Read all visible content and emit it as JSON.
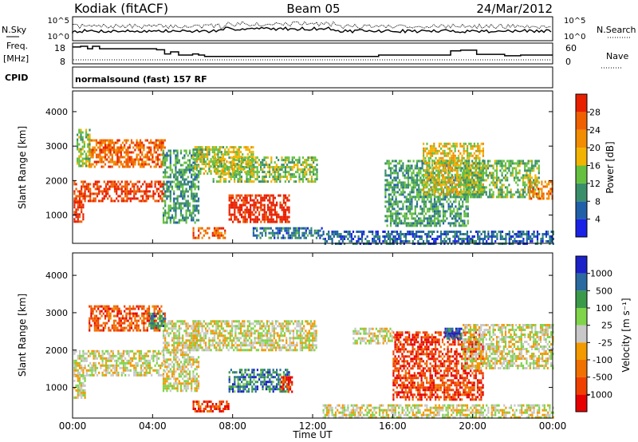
{
  "header": {
    "station": "Kodiak (fitACF)",
    "beam": "Beam 05",
    "date": "24/Mar/2012"
  },
  "noise_panel": {
    "left_label": "N.Sky",
    "right_label": "N.Search",
    "left_ticks": [
      "10^5",
      "10^0"
    ],
    "right_ticks": [
      "10^5",
      "10^0"
    ]
  },
  "freq_panel": {
    "left_label_line1": "Freq.",
    "left_label_line2": "[MHz]",
    "right_label": "Nave",
    "left_ticks": [
      "18",
      "8"
    ],
    "right_ticks": [
      "60",
      "0"
    ],
    "freq_steps": [
      {
        "t": 0.0,
        "f": 17.6
      },
      {
        "t": 0.4,
        "f": 18.0
      },
      {
        "t": 0.75,
        "f": 16.6
      },
      {
        "t": 1.0,
        "f": 18.0
      },
      {
        "t": 1.35,
        "f": 16.6
      },
      {
        "t": 2.5,
        "f": 16.6
      },
      {
        "t": 4.2,
        "f": 16.0
      },
      {
        "t": 4.6,
        "f": 13.6
      },
      {
        "t": 4.9,
        "f": 14.8
      },
      {
        "t": 5.3,
        "f": 13.0
      },
      {
        "t": 6.0,
        "f": 13.6
      },
      {
        "t": 6.3,
        "f": 13.0
      },
      {
        "t": 6.6,
        "f": 12.2
      },
      {
        "t": 14.5,
        "f": 12.2
      },
      {
        "t": 15.3,
        "f": 13.0
      },
      {
        "t": 18.5,
        "f": 13.0
      },
      {
        "t": 18.9,
        "f": 15.4
      },
      {
        "t": 19.4,
        "f": 15.8
      },
      {
        "t": 20.2,
        "f": 13.4
      },
      {
        "t": 21.2,
        "f": 13.4
      },
      {
        "t": 21.6,
        "f": 12.6
      },
      {
        "t": 22.4,
        "f": 13.0
      },
      {
        "t": 24.0,
        "f": 13.0
      }
    ]
  },
  "cpid": {
    "label": "CPID",
    "value": "normalsound (fast) 157 RF"
  },
  "xaxis": {
    "title": "Time UT",
    "ticks": [
      "00:00",
      "04:00",
      "08:00",
      "12:00",
      "16:00",
      "20:00",
      "00:00"
    ]
  },
  "chart_data": [
    {
      "type": "heatmap",
      "title": "",
      "xlabel": "",
      "ylabel": "Slant Range [km]",
      "xlim": [
        0,
        24
      ],
      "ylim": [
        180,
        4600
      ],
      "yticks": [
        1000,
        2000,
        3000,
        4000
      ],
      "ytick_labels": [
        "1000",
        "2000",
        "3000",
        "4000"
      ],
      "colorbar_label": "Power [dB]",
      "colorbar_ticks": [
        "28",
        "24",
        "20",
        "16",
        "12",
        "8",
        "4"
      ],
      "colorbar_values": [
        28,
        24,
        20,
        16,
        12,
        8,
        4
      ],
      "colorbar_range": [
        0,
        32
      ],
      "colorbar_colors": [
        "#1a22e6",
        "#2060a8",
        "#3a8f6a",
        "#66c040",
        "#f2b400",
        "#f28c00",
        "#f06000",
        "#e82000"
      ],
      "patches": [
        {
          "t0": 0.05,
          "t1": 4.6,
          "r0": 1400,
          "r1": 2000,
          "level": 0.9
        },
        {
          "t0": 0.05,
          "t1": 0.5,
          "r0": 800,
          "r1": 1400,
          "level": 0.95
        },
        {
          "t0": 0.8,
          "t1": 4.6,
          "r0": 2400,
          "r1": 3200,
          "level": 0.8
        },
        {
          "t0": 0.2,
          "t1": 0.9,
          "r0": 2400,
          "r1": 3500,
          "level": 0.45
        },
        {
          "t0": 4.5,
          "t1": 6.3,
          "r0": 800,
          "r1": 2900,
          "level": 0.35
        },
        {
          "t0": 6.0,
          "t1": 7.6,
          "r0": 350,
          "r1": 650,
          "level": 0.8
        },
        {
          "t0": 7.8,
          "t1": 10.8,
          "r0": 800,
          "r1": 1600,
          "level": 0.97
        },
        {
          "t0": 7.0,
          "t1": 12.2,
          "r0": 2000,
          "r1": 2700,
          "level": 0.45
        },
        {
          "t0": 6.0,
          "t1": 9.0,
          "r0": 2200,
          "r1": 3000,
          "level": 0.5
        },
        {
          "t0": 9.0,
          "t1": 12.5,
          "r0": 350,
          "r1": 650,
          "level": 0.25
        },
        {
          "t0": 12.5,
          "t1": 24.0,
          "r0": 200,
          "r1": 550,
          "level": 0.2
        },
        {
          "t0": 15.6,
          "t1": 19.8,
          "r0": 700,
          "r1": 2600,
          "level": 0.35
        },
        {
          "t0": 17.5,
          "t1": 20.5,
          "r0": 1600,
          "r1": 3100,
          "level": 0.55
        },
        {
          "t0": 19.5,
          "t1": 23.3,
          "r0": 1500,
          "r1": 2600,
          "level": 0.4
        },
        {
          "t0": 22.8,
          "t1": 24.0,
          "r0": 1500,
          "r1": 2000,
          "level": 0.75
        }
      ]
    },
    {
      "type": "heatmap",
      "title": "",
      "xlabel": "Time UT",
      "ylabel": "Slant Range [km]",
      "xlim": [
        0,
        24
      ],
      "ylim": [
        180,
        4600
      ],
      "yticks": [
        1000,
        2000,
        3000,
        4000
      ],
      "ytick_labels": [
        "1000",
        "2000",
        "3000",
        "4000"
      ],
      "colorbar_label": "Velocity [m s⁻¹]",
      "colorbar_ticks": [
        "1000",
        "500",
        "100",
        "25",
        "-25",
        "-100",
        "-500",
        "-1000"
      ],
      "colorbar_values": [
        1000,
        500,
        100,
        25,
        -25,
        -100,
        -500,
        -1000
      ],
      "colorbar_colors": [
        "#e60000",
        "#f04000",
        "#f07000",
        "#f29a00",
        "#c8c8c8",
        "#7fd44a",
        "#3a9a4a",
        "#2a6aa0",
        "#1a22c8"
      ],
      "patches": [
        {
          "t0": 0.05,
          "t1": 4.6,
          "r0": 1300,
          "r1": 2000,
          "level": 0.5
        },
        {
          "t0": 0.05,
          "t1": 0.6,
          "r0": 700,
          "r1": 1400,
          "level": 0.5
        },
        {
          "t0": 0.8,
          "t1": 4.6,
          "r0": 2500,
          "r1": 3200,
          "level": 0.2
        },
        {
          "t0": 3.8,
          "t1": 4.6,
          "r0": 2600,
          "r1": 3000,
          "level": 0.75
        },
        {
          "t0": 4.5,
          "t1": 6.3,
          "r0": 900,
          "r1": 2800,
          "level": 0.5
        },
        {
          "t0": 6.0,
          "t1": 7.8,
          "r0": 350,
          "r1": 650,
          "level": 0.15
        },
        {
          "t0": 7.8,
          "t1": 10.8,
          "r0": 900,
          "r1": 1500,
          "level": 0.78
        },
        {
          "t0": 10.4,
          "t1": 11.0,
          "r0": 900,
          "r1": 1300,
          "level": 0.15
        },
        {
          "t0": 6.0,
          "t1": 12.2,
          "r0": 2000,
          "r1": 2800,
          "level": 0.5
        },
        {
          "t0": 12.5,
          "t1": 24.0,
          "r0": 200,
          "r1": 550,
          "level": 0.5
        },
        {
          "t0": 16.0,
          "t1": 20.5,
          "r0": 700,
          "r1": 2500,
          "level": 0.15
        },
        {
          "t0": 18.6,
          "t1": 19.4,
          "r0": 2300,
          "r1": 2600,
          "level": 0.9
        },
        {
          "t0": 19.5,
          "t1": 24.0,
          "r0": 1500,
          "r1": 2700,
          "level": 0.5
        },
        {
          "t0": 14.0,
          "t1": 16.0,
          "r0": 2200,
          "r1": 2600,
          "level": 0.5
        }
      ]
    }
  ]
}
